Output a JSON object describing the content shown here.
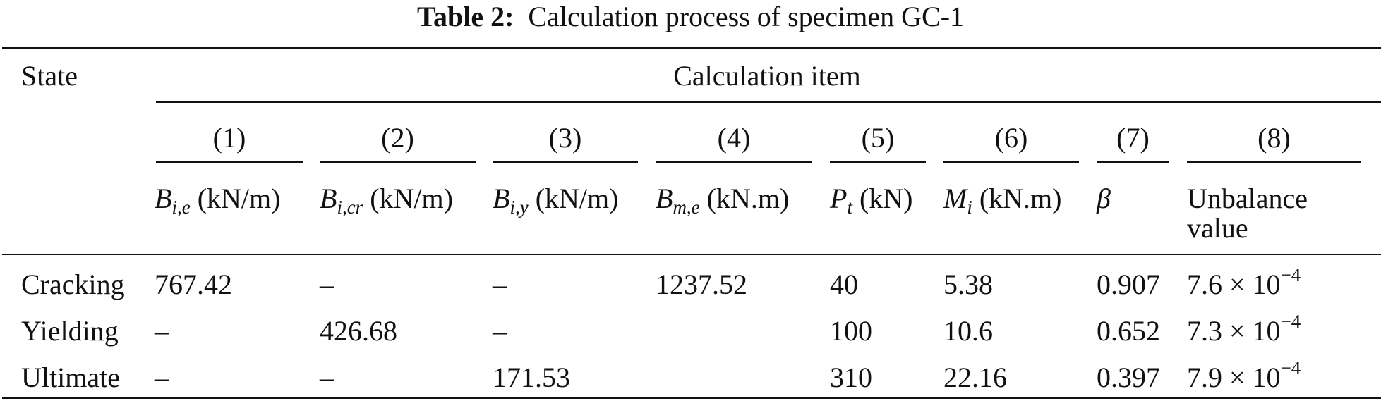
{
  "title": {
    "label": "Table 2:",
    "text": "Calculation process of specimen GC-1"
  },
  "header": {
    "state": "State",
    "group": "Calculation item",
    "numbers": [
      "(1)",
      "(2)",
      "(3)",
      "(4)",
      "(5)",
      "(6)",
      "(7)",
      "(8)"
    ],
    "items": [
      {
        "sym": "B",
        "sub": "i,e",
        "unit": "(kN/m)"
      },
      {
        "sym": "B",
        "sub": "i,cr",
        "unit": "(kN/m)"
      },
      {
        "sym": "B",
        "sub": "i,y",
        "unit": "(kN/m)"
      },
      {
        "sym": "B",
        "sub": "m,e",
        "unit": "(kN.m)"
      },
      {
        "sym": "P",
        "sub": "t",
        "unit": "(kN)"
      },
      {
        "sym": "M",
        "sub": "i",
        "unit": "(kN.m)"
      },
      {
        "sym": "β",
        "sub": "",
        "unit": ""
      },
      {
        "line1": "Unbalance",
        "line2": "value"
      }
    ]
  },
  "rows": [
    {
      "state": "Cracking",
      "c1": "767.42",
      "c2": "–",
      "c3": "–",
      "c4": "1237.52",
      "c5": "40",
      "c6": "5.38",
      "c7": "0.907",
      "c8_base": "7.6 × 10",
      "c8_exp": "−4"
    },
    {
      "state": "Yielding",
      "c1": "–",
      "c2": "426.68",
      "c3": "–",
      "c4": "",
      "c5": "100",
      "c6": "10.6",
      "c7": "0.652",
      "c8_base": "7.3 × 10",
      "c8_exp": "−4"
    },
    {
      "state": "Ultimate",
      "c1": "–",
      "c2": "–",
      "c3": "171.53",
      "c4": "",
      "c5": "310",
      "c6": "22.16",
      "c7": "0.397",
      "c8_base": "7.9 × 10",
      "c8_exp": "−4"
    }
  ]
}
